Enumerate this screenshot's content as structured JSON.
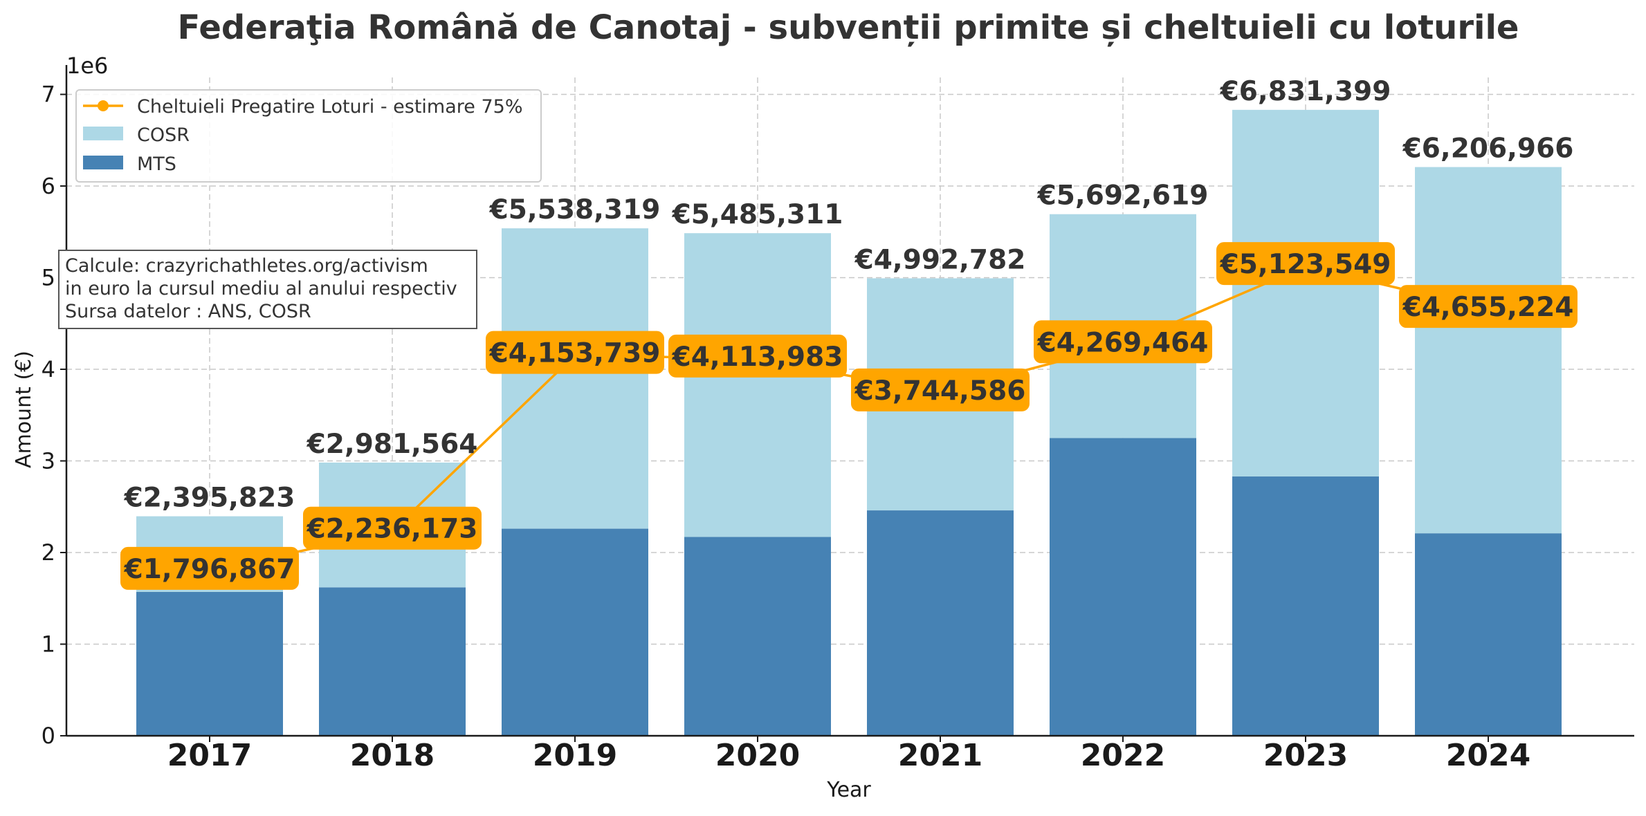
{
  "chart_data": {
    "type": "bar",
    "stacked": true,
    "title": "Federaţia Română de Canotaj - subvenții primite și cheltuieli cu loturile",
    "xlabel": "Year",
    "ylabel": "Amount (€)",
    "y_offset_label": "1e6",
    "ylim": [
      0,
      7200000
    ],
    "yticks": [
      0,
      1000000,
      2000000,
      3000000,
      4000000,
      5000000,
      6000000,
      7000000
    ],
    "ytick_labels": [
      "0",
      "1",
      "2",
      "3",
      "4",
      "5",
      "6",
      "7"
    ],
    "grid": true,
    "legend_position": "top-left",
    "categories": [
      "2017",
      "2018",
      "2019",
      "2020",
      "2021",
      "2022",
      "2023",
      "2024"
    ],
    "series": [
      {
        "name": "MTS",
        "kind": "bar",
        "color": "#4682b4",
        "values": [
          1570000,
          1620000,
          2260000,
          2170000,
          2460000,
          3250000,
          2830000,
          2210000
        ]
      },
      {
        "name": "COSR",
        "kind": "bar",
        "color": "#add8e6",
        "values": [
          825823,
          1361564,
          3278319,
          3315311,
          2532782,
          2442619,
          4001399,
          3996966
        ]
      },
      {
        "name": "Cheltuieli Pregatire Loturi - estimare 75%",
        "kind": "line",
        "color": "#ffa500",
        "values": [
          1796867,
          2236173,
          4153739,
          4113983,
          3744586,
          4269464,
          5123549,
          4655224
        ]
      }
    ],
    "total_labels": [
      "€2,395,823",
      "€2,981,564",
      "€5,538,319",
      "€5,485,311",
      "€4,992,782",
      "€5,692,619",
      "€6,831,399",
      "€6,206,966"
    ],
    "line_labels": [
      "€1,796,867",
      "€2,236,173",
      "€4,153,739",
      "€4,113,983",
      "€3,744,586",
      "€4,269,464",
      "€5,123,549",
      "€4,655,224"
    ],
    "annotation": [
      "Calcule: crazyrichathletes.org/activism",
      "in euro la cursul mediu al anului respectiv",
      "Sursa datelor : ANS, COSR"
    ]
  }
}
